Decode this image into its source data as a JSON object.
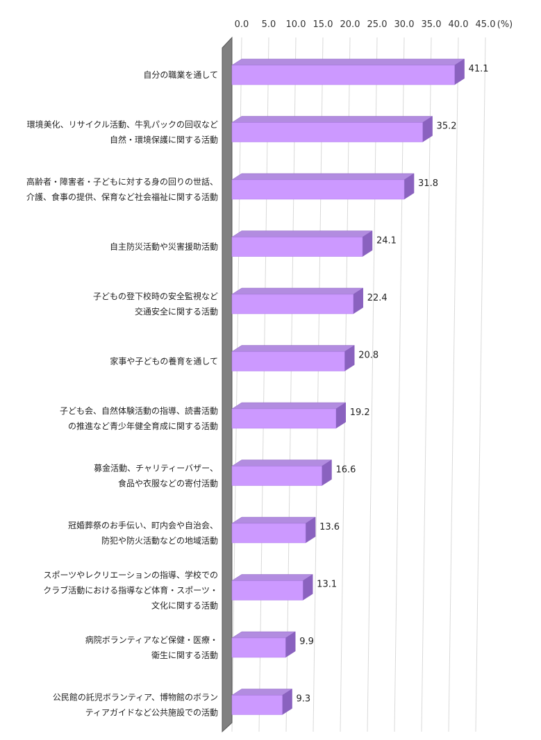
{
  "chart_data": {
    "type": "bar",
    "orientation": "horizontal",
    "unit": "(%)",
    "xlim": [
      0,
      45
    ],
    "ticks": [
      "0.0",
      "5.0",
      "10.0",
      "15.0",
      "20.0",
      "25.0",
      "30.0",
      "35.0",
      "40.0",
      "45.0"
    ],
    "grid": true,
    "colors": {
      "bar_face": "#cc99ff",
      "bar_top": "#b28ce0",
      "bar_side": "#8a62bf",
      "wall": "#808080"
    },
    "categories": [
      [
        "自分の職業を通して"
      ],
      [
        "環境美化、リサイクル活動、牛乳パックの回収など",
        "自然・環境保護に関する活動"
      ],
      [
        "高齢者・障害者・子どもに対する身の回りの世話、",
        "介護、食事の提供、保育など社会福祉に関する活動"
      ],
      [
        "自主防災活動や災害援助活動"
      ],
      [
        "子どもの登下校時の安全監視など",
        "交通安全に関する活動"
      ],
      [
        "家事や子どもの養育を通して"
      ],
      [
        "子ども会、自然体験活動の指導、読書活動",
        "の推進など青少年健全育成に関する活動"
      ],
      [
        "募金活動、チャリティーバザー、",
        "食品や衣服などの寄付活動"
      ],
      [
        "冠婚葬祭のお手伝い、町内会や自治会、",
        "防犯や防火活動などの地域活動"
      ],
      [
        "スポーツやレクリエーションの指導、学校での",
        "クラブ活動における指導など体育・スポーツ・",
        "文化に関する活動"
      ],
      [
        "病院ボランティアなど保健・医療・",
        "衛生に関する活動"
      ],
      [
        "公民館の託児ボランティア、博物館のボラン",
        "ティアガイドなど公共施設での活動"
      ]
    ],
    "values": [
      41.1,
      35.2,
      31.8,
      24.1,
      22.4,
      20.8,
      19.2,
      16.6,
      13.6,
      13.1,
      9.9,
      9.3
    ],
    "value_labels": [
      "41.1",
      "35.2",
      "31.8",
      "24.1",
      "22.4",
      "20.8",
      "19.2",
      "16.6",
      "13.6",
      "13.1",
      "9.9",
      "9.3"
    ]
  }
}
